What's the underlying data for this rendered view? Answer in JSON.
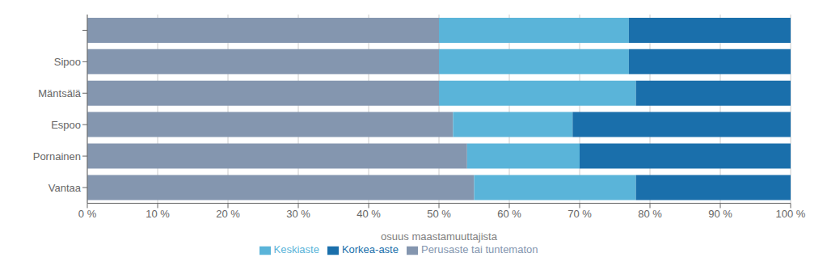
{
  "chart_data": {
    "type": "bar",
    "orientation": "horizontal",
    "stacked": true,
    "categories": [
      "Vantaa",
      "Pornainen",
      "Espoo",
      "Mäntsälä",
      "Sipoo",
      null
    ],
    "series": [
      {
        "name": "Perusaste tai tuntematon",
        "color": "#8496af",
        "values": [
          55,
          54,
          52,
          50,
          50,
          50
        ]
      },
      {
        "name": "Keskiaste",
        "color": "#5ab4d9",
        "values": [
          23,
          16,
          17,
          28,
          27,
          27
        ]
      },
      {
        "name": "Korkea-aste",
        "color": "#1a6fab",
        "values": [
          22,
          30,
          31,
          22,
          23,
          23
        ]
      }
    ],
    "xlabel": "osuus maastamuuttajista",
    "xlim": [
      0,
      100
    ],
    "xticks": [
      {
        "value": 0,
        "label": "0 %"
      },
      {
        "value": 10,
        "label": "10 %"
      },
      {
        "value": 20,
        "label": "20 %"
      },
      {
        "value": 30,
        "label": "30 %"
      },
      {
        "value": 40,
        "label": "40 %"
      },
      {
        "value": 50,
        "label": "50 %"
      },
      {
        "value": 60,
        "label": "60 %"
      },
      {
        "value": 70,
        "label": "70 %"
      },
      {
        "value": 80,
        "label": "80 %"
      },
      {
        "value": 90,
        "label": "90 %"
      },
      {
        "value": 100,
        "label": "100 %"
      }
    ],
    "grid": true,
    "legend": "bottom"
  }
}
